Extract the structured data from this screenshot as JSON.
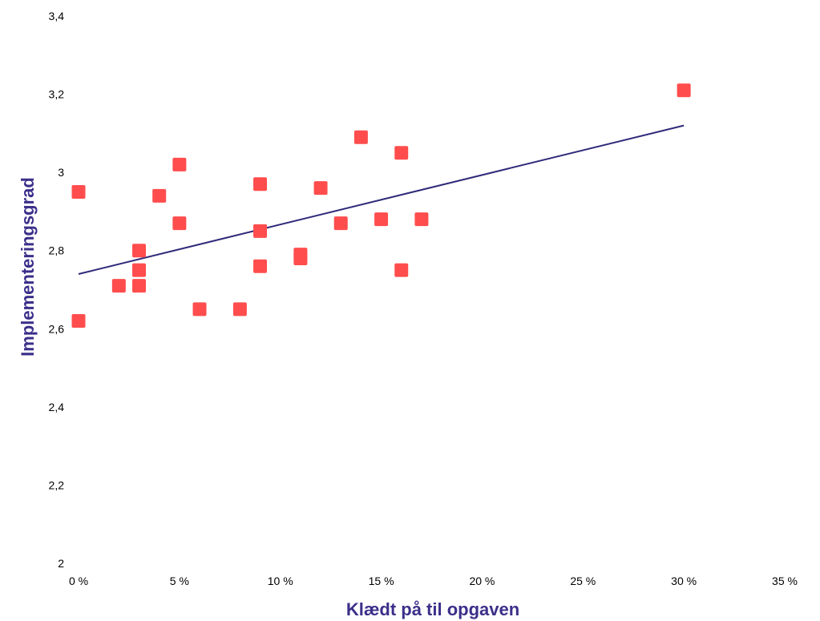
{
  "chart_data": {
    "type": "scatter",
    "xlabel": "Klædt på til opgaven",
    "ylabel": "Implementeringsgrad",
    "xlim": [
      0,
      0.35
    ],
    "ylim": [
      2,
      3.4
    ],
    "x_ticks": [
      0,
      0.05,
      0.1,
      0.15,
      0.2,
      0.25,
      0.3,
      0.35
    ],
    "x_tick_labels": [
      "0 %",
      "5 %",
      "10 %",
      "15 %",
      "20 %",
      "25 %",
      "30 %",
      "35 %"
    ],
    "y_ticks": [
      2,
      2.2,
      2.4,
      2.6,
      2.8,
      3,
      3.2,
      3.4
    ],
    "y_tick_labels": [
      "2",
      "2,2",
      "2,4",
      "2,6",
      "2,8",
      "3",
      "3,2",
      "3,4"
    ],
    "grid": false,
    "series": [
      {
        "points": [
          {
            "x": 0.0,
            "y": 2.95
          },
          {
            "x": 0.0,
            "y": 2.62
          },
          {
            "x": 0.02,
            "y": 2.71
          },
          {
            "x": 0.03,
            "y": 2.8
          },
          {
            "x": 0.03,
            "y": 2.75
          },
          {
            "x": 0.03,
            "y": 2.71
          },
          {
            "x": 0.04,
            "y": 2.94
          },
          {
            "x": 0.05,
            "y": 3.02
          },
          {
            "x": 0.05,
            "y": 2.87
          },
          {
            "x": 0.06,
            "y": 2.65
          },
          {
            "x": 0.08,
            "y": 2.65
          },
          {
            "x": 0.09,
            "y": 2.97
          },
          {
            "x": 0.09,
            "y": 2.85
          },
          {
            "x": 0.09,
            "y": 2.76
          },
          {
            "x": 0.11,
            "y": 2.79
          },
          {
            "x": 0.11,
            "y": 2.78
          },
          {
            "x": 0.12,
            "y": 2.96
          },
          {
            "x": 0.13,
            "y": 2.87
          },
          {
            "x": 0.14,
            "y": 3.09
          },
          {
            "x": 0.15,
            "y": 2.88
          },
          {
            "x": 0.16,
            "y": 3.05
          },
          {
            "x": 0.16,
            "y": 2.75
          },
          {
            "x": 0.17,
            "y": 2.88
          },
          {
            "x": 0.3,
            "y": 3.21
          }
        ]
      }
    ],
    "trendline": {
      "x": [
        0,
        0.3
      ],
      "y": [
        2.74,
        3.12
      ]
    }
  },
  "colors": {
    "marker": "#ff4d4d",
    "trendline": "#2e2a7a",
    "axis_title": "#3b2f8a",
    "tick_label": "#000000"
  }
}
